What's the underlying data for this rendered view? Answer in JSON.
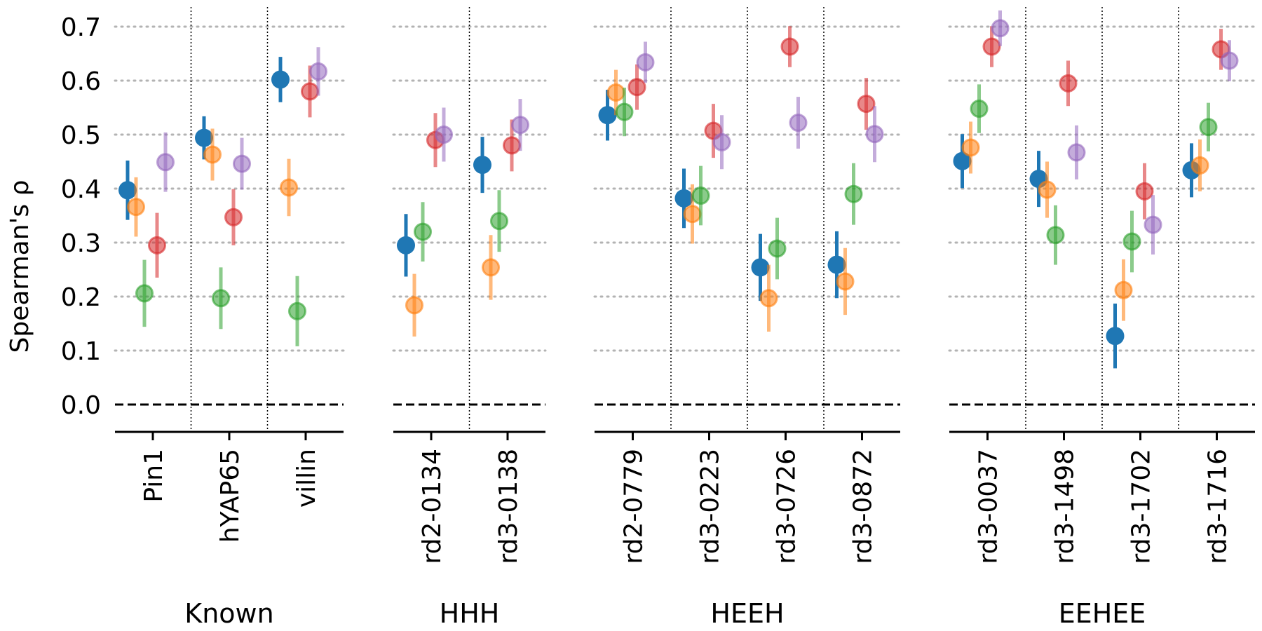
{
  "chart_data": {
    "type": "scatter",
    "ylabel": "Spearman's ρ",
    "ylim": [
      -0.05,
      0.75
    ],
    "yticks": [
      0.0,
      0.1,
      0.2,
      0.3,
      0.4,
      0.5,
      0.6,
      0.7
    ],
    "ytick_labels": [
      "0.0",
      "0.1",
      "0.2",
      "0.3",
      "0.4",
      "0.5",
      "0.6",
      "0.7"
    ],
    "grid": "horizontal dotted",
    "reference_line": 0.0,
    "series_colors": [
      "#1f77b4",
      "#ff7f0e",
      "#2ca02c",
      "#d62728",
      "#9467bd"
    ],
    "groups": [
      {
        "label": "Known",
        "items": [
          {
            "name": "Pin1",
            "values": [
              0.397,
              0.366,
              0.206,
              0.295,
              0.449
            ],
            "errors": [
              0.055,
              0.055,
              0.062,
              0.06,
              0.055
            ]
          },
          {
            "name": "hYAP65",
            "values": [
              0.494,
              0.463,
              0.197,
              0.347,
              0.446
            ],
            "errors": [
              0.04,
              0.048,
              0.057,
              0.052,
              0.048
            ]
          },
          {
            "name": "villin",
            "values": [
              0.602,
              0.402,
              0.173,
              0.58,
              0.617
            ],
            "errors": [
              0.042,
              0.053,
              0.065,
              0.048,
              0.045
            ]
          }
        ]
      },
      {
        "label": "HHH",
        "items": [
          {
            "name": "rd2-0134",
            "values": [
              0.295,
              0.184,
              0.32,
              0.49,
              0.5
            ],
            "errors": [
              0.058,
              0.058,
              0.055,
              0.05,
              0.05
            ]
          },
          {
            "name": "rd3-0138",
            "values": [
              0.444,
              0.254,
              0.34,
              0.48,
              0.518
            ],
            "errors": [
              0.052,
              0.06,
              0.057,
              0.048,
              0.048
            ]
          }
        ]
      },
      {
        "label": "HEEH",
        "items": [
          {
            "name": "rd2-0779",
            "values": [
              0.536,
              0.578,
              0.542,
              0.588,
              0.634
            ],
            "errors": [
              0.047,
              0.042,
              0.045,
              0.042,
              0.038
            ]
          },
          {
            "name": "rd3-0223",
            "values": [
              0.382,
              0.353,
              0.387,
              0.507,
              0.486
            ],
            "errors": [
              0.055,
              0.055,
              0.055,
              0.05,
              0.05
            ]
          },
          {
            "name": "rd3-0726",
            "values": [
              0.254,
              0.197,
              0.289,
              0.663,
              0.522
            ],
            "errors": [
              0.062,
              0.062,
              0.057,
              0.038,
              0.048
            ]
          },
          {
            "name": "rd3-0872",
            "values": [
              0.259,
              0.228,
              0.39,
              0.557,
              0.501
            ],
            "errors": [
              0.062,
              0.062,
              0.057,
              0.048,
              0.052
            ]
          }
        ]
      },
      {
        "label": "EEHEE",
        "items": [
          {
            "name": "rd3-0037",
            "values": [
              0.451,
              0.476,
              0.548,
              0.663,
              0.697
            ],
            "errors": [
              0.05,
              0.048,
              0.045,
              0.038,
              0.033
            ]
          },
          {
            "name": "rd3-1498",
            "values": [
              0.418,
              0.398,
              0.314,
              0.595,
              0.467
            ],
            "errors": [
              0.052,
              0.052,
              0.055,
              0.042,
              0.05
            ]
          },
          {
            "name": "rd3-1702",
            "values": [
              0.127,
              0.212,
              0.302,
              0.395,
              0.333
            ],
            "errors": [
              0.06,
              0.057,
              0.057,
              0.052,
              0.055
            ]
          },
          {
            "name": "rd3-1716",
            "values": [
              0.434,
              0.443,
              0.514,
              0.658,
              0.637
            ],
            "errors": [
              0.05,
              0.048,
              0.045,
              0.038,
              0.038
            ]
          }
        ]
      }
    ]
  }
}
